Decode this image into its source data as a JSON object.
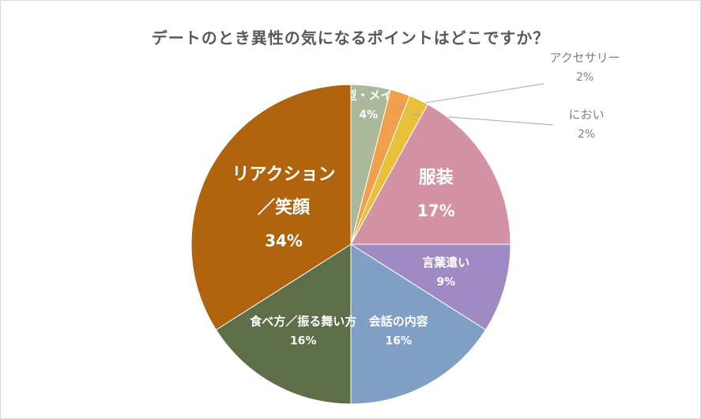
{
  "chart_data": {
    "type": "pie",
    "title": "デートのとき異性の気になるポイントはどこですか？",
    "start_angle_deg": 0,
    "direction": "clockwise",
    "slices": [
      {
        "label": "髪型・メイク",
        "value": 4,
        "value_label": "4%",
        "color": "#a9b99a",
        "label_color": "#ffffff",
        "label_size": "small"
      },
      {
        "label": "アクセサリー",
        "value": 2,
        "value_label": "2%",
        "color": "#f0a04b",
        "label_color": "#808080",
        "label_size": "small",
        "outside": true
      },
      {
        "label": "におい",
        "value": 2,
        "value_label": "2%",
        "color": "#e8c13a",
        "label_color": "#808080",
        "label_size": "small",
        "outside": true
      },
      {
        "label": "服装",
        "value": 17,
        "value_label": "17%",
        "color": "#d393a4",
        "label_color": "#ffffff",
        "label_size": "large"
      },
      {
        "label": "言葉遣い",
        "value": 9,
        "value_label": "9%",
        "color": "#9f8ac4",
        "label_color": "#ffffff",
        "label_size": "small"
      },
      {
        "label": "会話の内容",
        "value": 16,
        "value_label": "16%",
        "color": "#7f9fc4",
        "label_color": "#ffffff",
        "label_size": "small"
      },
      {
        "label": "食べ方／振る舞い方",
        "value": 16,
        "value_label": "16%",
        "color": "#5d6e48",
        "label_color": "#ffffff",
        "label_size": "small"
      },
      {
        "label": "リアクション／笑顔",
        "value": 34,
        "value_label": "34%",
        "color": "#b0640e",
        "label_color": "#ffffff",
        "label_size": "large",
        "label_lines": [
          "リアクション",
          "／笑顔"
        ]
      }
    ]
  }
}
